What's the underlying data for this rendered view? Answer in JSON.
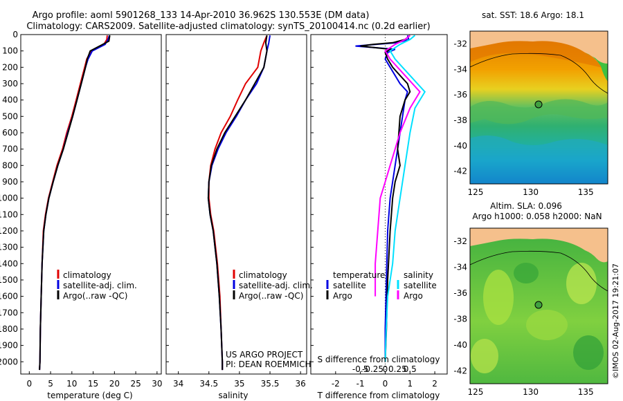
{
  "header": {
    "line1": "Argo profile: aoml 5901268_133 14-Apr-2010 36.962S 130.553E (DM data)",
    "line2": "Climatology: CARS2009. Satellite-adjusted climatology: synTS_20100414.nc (0.2d earlier)"
  },
  "colors": {
    "climatology": "#e00000",
    "satellite": "#0000e0",
    "argo": "#000000",
    "sat_s": "#00e0ff",
    "argo_s": "#ff00ff"
  },
  "chart_data": [
    {
      "type": "line",
      "id": "temperature",
      "xlabel": "temperature (deg C)",
      "xlim": [
        -2,
        31
      ],
      "xticks": [
        "0",
        "5",
        "10",
        "15",
        "20",
        "25",
        "30"
      ],
      "ylim": [
        0,
        2075
      ],
      "yticks": [
        "0",
        "100",
        "200",
        "300",
        "400",
        "500",
        "600",
        "700",
        "800",
        "900",
        "1000",
        "1100",
        "1200",
        "1300",
        "1400",
        "1500",
        "1600",
        "1700",
        "1800",
        "1900",
        "2000"
      ],
      "legend": [
        "climatology",
        "satellite-adj. clim.",
        "Argo(..raw -QC)"
      ],
      "series": [
        {
          "name": "climatology",
          "x": [
            18.3,
            18.2,
            17.5,
            14.5,
            13.5,
            13.0,
            12.0,
            11.0,
            10.0,
            8.8,
            7.8,
            6.5,
            5.5,
            4.5,
            3.8,
            3.3,
            3.0,
            2.8,
            2.6,
            2.5,
            2.4
          ],
          "y": [
            5,
            30,
            60,
            100,
            150,
            200,
            300,
            400,
            500,
            600,
            700,
            800,
            900,
            1000,
            1100,
            1200,
            1400,
            1600,
            1800,
            2000,
            2050
          ]
        },
        {
          "name": "satellite-adj. clim.",
          "x": [
            18.8,
            18.5,
            17.8,
            14.8,
            13.8,
            13.2,
            12.2,
            11.2,
            10.2,
            9.0,
            8.0,
            6.7,
            5.6,
            4.6,
            3.9,
            3.4,
            3.0,
            2.8,
            2.6,
            2.5,
            2.4
          ],
          "y": [
            5,
            30,
            60,
            100,
            150,
            200,
            300,
            400,
            500,
            600,
            700,
            800,
            900,
            1000,
            1100,
            1200,
            1400,
            1600,
            1800,
            2000,
            2050
          ]
        },
        {
          "name": "Argo(..raw -QC)",
          "x": [
            18.9,
            18.7,
            16.5,
            14.3,
            13.6,
            13.2,
            12.2,
            11.2,
            10.2,
            9.1,
            8.0,
            6.7,
            5.6,
            4.6,
            3.9,
            3.4,
            3.0,
            2.8,
            2.6,
            2.5,
            2.4
          ],
          "y": [
            5,
            40,
            70,
            100,
            150,
            200,
            300,
            400,
            500,
            600,
            700,
            800,
            900,
            1000,
            1100,
            1200,
            1400,
            1600,
            1800,
            2000,
            2050
          ]
        }
      ]
    },
    {
      "type": "line",
      "id": "salinity",
      "xlabel": "salinity",
      "xlim": [
        33.8,
        36.1
      ],
      "xticks": [
        "34",
        "34.5",
        "35",
        "35.5",
        "36"
      ],
      "legend": [
        "climatology",
        "satellite-adj. clim.",
        "Argo(..raw -QC)"
      ],
      "annotation": [
        "US ARGO PROJECT",
        "PI: DEAN ROEMMICH"
      ],
      "series": [
        {
          "name": "climatology",
          "x": [
            35.45,
            35.4,
            35.35,
            35.3,
            35.1,
            34.97,
            34.85,
            34.7,
            34.6,
            34.53,
            34.5,
            34.5,
            34.53,
            34.58,
            34.64,
            34.68,
            34.7,
            34.72,
            34.72
          ],
          "y": [
            5,
            50,
            100,
            200,
            300,
            400,
            500,
            600,
            700,
            800,
            900,
            1000,
            1100,
            1200,
            1400,
            1600,
            1800,
            2000,
            2050
          ]
        },
        {
          "name": "satellite-adj. clim.",
          "x": [
            35.5,
            35.48,
            35.45,
            35.4,
            35.28,
            35.1,
            34.95,
            34.78,
            34.65,
            34.55,
            34.5,
            34.49,
            34.52,
            34.57,
            34.63,
            34.67,
            34.7,
            34.72,
            34.72
          ],
          "y": [
            5,
            50,
            100,
            200,
            300,
            400,
            500,
            600,
            700,
            800,
            900,
            1000,
            1100,
            1200,
            1400,
            1600,
            1800,
            2000,
            2050
          ]
        },
        {
          "name": "Argo(..raw -QC)",
          "x": [
            35.45,
            35.43,
            35.45,
            35.4,
            35.25,
            35.1,
            34.93,
            34.76,
            34.63,
            34.54,
            34.5,
            34.49,
            34.52,
            34.57,
            34.63,
            34.67,
            34.7,
            34.72,
            34.72
          ],
          "y": [
            5,
            50,
            100,
            200,
            300,
            400,
            500,
            600,
            700,
            800,
            900,
            1000,
            1100,
            1200,
            1400,
            1600,
            1800,
            2000,
            2050
          ]
        }
      ]
    },
    {
      "type": "line",
      "id": "difference",
      "xlabel": "T difference from climatology",
      "xlabel2": "S difference from climatology",
      "xlim": [
        -3,
        2.5
      ],
      "xticks": [
        "-2",
        "-1",
        "0",
        "1",
        "2"
      ],
      "xticks2": [
        "-0.5",
        "-0.25",
        "0",
        "0.25",
        "0.5"
      ],
      "legend_headers": [
        "temperature",
        "salinity"
      ],
      "legend": [
        "satellite",
        "Argo",
        "satellite",
        "Argo"
      ],
      "series": [
        {
          "name": "temperature satellite",
          "x": [
            0.9,
            0.95,
            0.5,
            -0.4,
            -1.2,
            0.4,
            0.1,
            0.0,
            0.2,
            0.4,
            0.6,
            0.9,
            0.8,
            0.7,
            0.6,
            0.5,
            0.4,
            0.3,
            0.2,
            0.1,
            0.05,
            0.0,
            0.0
          ],
          "y": [
            5,
            30,
            50,
            60,
            70,
            90,
            110,
            150,
            200,
            250,
            300,
            350,
            400,
            500,
            600,
            700,
            800,
            900,
            1000,
            1200,
            1500,
            1800,
            2000
          ]
        },
        {
          "name": "temperature Argo",
          "x": [
            1.0,
            0.8,
            0.3,
            -0.5,
            -1.0,
            0.2,
            0.0,
            0.1,
            0.3,
            0.6,
            0.9,
            1.0,
            0.8,
            0.6,
            0.55,
            0.5,
            0.6,
            0.4,
            0.3,
            0.2,
            0.1,
            0.05,
            0.0
          ],
          "y": [
            5,
            30,
            50,
            60,
            70,
            90,
            110,
            150,
            200,
            250,
            300,
            350,
            400,
            500,
            600,
            700,
            800,
            900,
            1000,
            1200,
            1500,
            1800,
            2000
          ]
        },
        {
          "name": "salinity satellite",
          "x": [
            0.6,
            0.5,
            0.3,
            0.1,
            0.2,
            0.5,
            0.8,
            0.6,
            0.5,
            0.4,
            0.35,
            0.3,
            0.2,
            0.15,
            0.05,
            0.02,
            0.0
          ],
          "y": [
            5,
            30,
            60,
            100,
            150,
            250,
            350,
            450,
            600,
            800,
            900,
            1000,
            1200,
            1400,
            1600,
            1800,
            2000
          ]
        },
        {
          "name": "salinity Argo",
          "x": [
            0.5,
            0.4,
            0.2,
            0.0,
            0.1,
            0.4,
            0.7,
            0.5,
            0.3,
            0.1,
            0.0,
            -0.1,
            -0.15,
            -0.2,
            -0.2,
            -0.2
          ],
          "y": [
            5,
            30,
            60,
            100,
            150,
            250,
            350,
            450,
            600,
            800,
            900,
            1000,
            1200,
            1400,
            1500,
            1600
          ]
        }
      ]
    },
    {
      "type": "heatmap",
      "id": "sst-map",
      "title": "sat. SST: 18.6 Argo: 18.1",
      "xticks": [
        "125",
        "130",
        "135"
      ],
      "yticks": [
        "-32",
        "-34",
        "-36",
        "-38",
        "-40",
        "-42"
      ],
      "xlim": [
        124.5,
        137
      ],
      "ylim": [
        -43,
        -31
      ],
      "profile_location": [
        130.553,
        -36.962
      ]
    },
    {
      "type": "heatmap",
      "id": "sla-map",
      "title1": "Altim. SLA: 0.096",
      "title2": "Argo h1000: 0.058 h2000: NaN",
      "xticks": [
        "125",
        "130",
        "135"
      ],
      "yticks": [
        "-32",
        "-34",
        "-36",
        "-38",
        "-40",
        "-42"
      ],
      "xlim": [
        124.5,
        137
      ],
      "ylim": [
        -43,
        -31
      ],
      "profile_location": [
        130.553,
        -36.962
      ]
    }
  ],
  "watermark": "©IMOS 02-Aug-2017 19:21:07"
}
